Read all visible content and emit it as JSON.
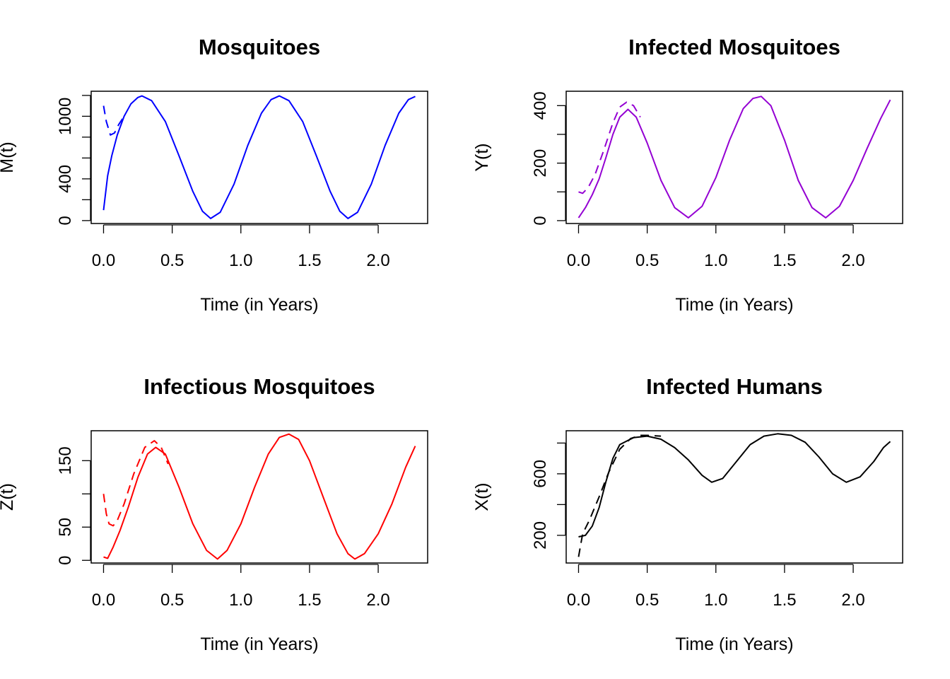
{
  "chart_data": [
    {
      "type": "line",
      "title": "Mosquitoes",
      "xlabel": "Time (in Years)",
      "ylabel": "M(t)",
      "xlim": [
        -0.09,
        2.36
      ],
      "ylim": [
        -28,
        1240
      ],
      "xticks": [
        0.0,
        0.5,
        1.0,
        1.5,
        2.0
      ],
      "xtick_labels": [
        "0.0",
        "0.5",
        "1.0",
        "1.5",
        "2.0"
      ],
      "yticks": [
        0,
        200,
        400,
        600,
        800,
        1000,
        1200
      ],
      "ytick_labels": [
        "0",
        "",
        "400",
        "",
        "",
        "1000",
        ""
      ],
      "color": "#0000ff",
      "series": [
        {
          "style": "solid",
          "points": [
            [
              0.0,
              100
            ],
            [
              0.03,
              430
            ],
            [
              0.06,
              620
            ],
            [
              0.1,
              820
            ],
            [
              0.15,
              1000
            ],
            [
              0.2,
              1120
            ],
            [
              0.25,
              1180
            ],
            [
              0.28,
              1195
            ],
            [
              0.35,
              1150
            ],
            [
              0.45,
              950
            ],
            [
              0.55,
              620
            ],
            [
              0.65,
              280
            ],
            [
              0.72,
              90
            ],
            [
              0.78,
              20
            ],
            [
              0.85,
              80
            ],
            [
              0.95,
              350
            ],
            [
              1.05,
              720
            ],
            [
              1.15,
              1030
            ],
            [
              1.22,
              1160
            ],
            [
              1.28,
              1195
            ],
            [
              1.35,
              1150
            ],
            [
              1.45,
              950
            ],
            [
              1.55,
              620
            ],
            [
              1.65,
              280
            ],
            [
              1.72,
              90
            ],
            [
              1.78,
              20
            ],
            [
              1.85,
              80
            ],
            [
              1.95,
              350
            ],
            [
              2.05,
              720
            ],
            [
              2.15,
              1030
            ],
            [
              2.22,
              1160
            ],
            [
              2.27,
              1190
            ]
          ]
        },
        {
          "style": "dashed",
          "points": [
            [
              0.0,
              1100
            ],
            [
              0.02,
              950
            ],
            [
              0.05,
              820
            ],
            [
              0.08,
              840
            ],
            [
              0.11,
              920
            ],
            [
              0.15,
              1000
            ]
          ]
        }
      ]
    },
    {
      "type": "line",
      "title": "Infected Mosquitoes",
      "xlabel": "Time (in Years)",
      "ylabel": "Y(t)",
      "xlim": [
        -0.09,
        2.36
      ],
      "ylim": [
        -10,
        450
      ],
      "xticks": [
        0.0,
        0.5,
        1.0,
        1.5,
        2.0
      ],
      "xtick_labels": [
        "0.0",
        "0.5",
        "1.0",
        "1.5",
        "2.0"
      ],
      "yticks": [
        0,
        100,
        200,
        300,
        400
      ],
      "ytick_labels": [
        "0",
        "",
        "200",
        "",
        "400"
      ],
      "color": "#9400d3",
      "series": [
        {
          "style": "solid",
          "points": [
            [
              0.0,
              10
            ],
            [
              0.05,
              45
            ],
            [
              0.1,
              90
            ],
            [
              0.15,
              145
            ],
            [
              0.2,
              220
            ],
            [
              0.25,
              300
            ],
            [
              0.3,
              360
            ],
            [
              0.36,
              387
            ],
            [
              0.42,
              360
            ],
            [
              0.5,
              270
            ],
            [
              0.6,
              140
            ],
            [
              0.7,
              45
            ],
            [
              0.8,
              10
            ],
            [
              0.9,
              50
            ],
            [
              1.0,
              150
            ],
            [
              1.1,
              280
            ],
            [
              1.2,
              390
            ],
            [
              1.27,
              425
            ],
            [
              1.33,
              432
            ],
            [
              1.4,
              400
            ],
            [
              1.5,
              280
            ],
            [
              1.6,
              140
            ],
            [
              1.7,
              45
            ],
            [
              1.8,
              10
            ],
            [
              1.9,
              50
            ],
            [
              2.0,
              140
            ],
            [
              2.1,
              250
            ],
            [
              2.2,
              355
            ],
            [
              2.27,
              420
            ]
          ]
        },
        {
          "style": "dashed",
          "points": [
            [
              0.0,
              100
            ],
            [
              0.03,
              95
            ],
            [
              0.07,
              115
            ],
            [
              0.12,
              160
            ],
            [
              0.18,
              240
            ],
            [
              0.25,
              340
            ],
            [
              0.3,
              395
            ],
            [
              0.35,
              412
            ],
            [
              0.4,
              400
            ],
            [
              0.45,
              360
            ]
          ]
        }
      ]
    },
    {
      "type": "line",
      "title": "Infectious Mosquitoes",
      "xlabel": "Time (in Years)",
      "ylabel": "Z(t)",
      "xlim": [
        -0.09,
        2.36
      ],
      "ylim": [
        -4,
        195
      ],
      "xticks": [
        0.0,
        0.5,
        1.0,
        1.5,
        2.0
      ],
      "xtick_labels": [
        "0.0",
        "0.5",
        "1.0",
        "1.5",
        "2.0"
      ],
      "yticks": [
        0,
        50,
        100,
        150
      ],
      "ytick_labels": [
        "0",
        "50",
        "",
        "150"
      ],
      "color": "#ff0000",
      "series": [
        {
          "style": "solid",
          "points": [
            [
              0.0,
              5
            ],
            [
              0.03,
              3
            ],
            [
              0.07,
              20
            ],
            [
              0.12,
              45
            ],
            [
              0.18,
              80
            ],
            [
              0.25,
              125
            ],
            [
              0.32,
              160
            ],
            [
              0.38,
              170
            ],
            [
              0.45,
              160
            ],
            [
              0.55,
              110
            ],
            [
              0.65,
              55
            ],
            [
              0.75,
              15
            ],
            [
              0.83,
              2
            ],
            [
              0.9,
              15
            ],
            [
              1.0,
              55
            ],
            [
              1.1,
              110
            ],
            [
              1.2,
              160
            ],
            [
              1.28,
              185
            ],
            [
              1.35,
              190
            ],
            [
              1.42,
              182
            ],
            [
              1.5,
              150
            ],
            [
              1.6,
              95
            ],
            [
              1.7,
              40
            ],
            [
              1.78,
              10
            ],
            [
              1.83,
              2
            ],
            [
              1.9,
              10
            ],
            [
              2.0,
              40
            ],
            [
              2.1,
              85
            ],
            [
              2.2,
              140
            ],
            [
              2.27,
              172
            ]
          ]
        },
        {
          "style": "dashed",
          "points": [
            [
              0.0,
              100
            ],
            [
              0.02,
              70
            ],
            [
              0.04,
              55
            ],
            [
              0.07,
              52
            ],
            [
              0.1,
              60
            ],
            [
              0.15,
              85
            ],
            [
              0.22,
              130
            ],
            [
              0.3,
              170
            ],
            [
              0.37,
              180
            ],
            [
              0.42,
              170
            ],
            [
              0.47,
              145
            ]
          ]
        }
      ]
    },
    {
      "type": "line",
      "title": "Infected Humans",
      "xlabel": "Time (in Years)",
      "ylabel": "X(t)",
      "xlim": [
        -0.09,
        2.36
      ],
      "ylim": [
        20,
        880
      ],
      "xticks": [
        0.0,
        0.5,
        1.0,
        1.5,
        2.0
      ],
      "xtick_labels": [
        "0.0",
        "0.5",
        "1.0",
        "1.5",
        "2.0"
      ],
      "yticks": [
        200,
        400,
        600,
        800
      ],
      "ytick_labels": [
        "200",
        "",
        "600",
        ""
      ],
      "color": "#000000",
      "series": [
        {
          "style": "solid",
          "points": [
            [
              0.0,
              190
            ],
            [
              0.05,
              200
            ],
            [
              0.1,
              260
            ],
            [
              0.15,
              380
            ],
            [
              0.2,
              550
            ],
            [
              0.25,
              700
            ],
            [
              0.3,
              790
            ],
            [
              0.4,
              835
            ],
            [
              0.5,
              845
            ],
            [
              0.6,
              825
            ],
            [
              0.7,
              770
            ],
            [
              0.8,
              690
            ],
            [
              0.9,
              590
            ],
            [
              0.97,
              545
            ],
            [
              1.05,
              570
            ],
            [
              1.15,
              680
            ],
            [
              1.25,
              790
            ],
            [
              1.35,
              845
            ],
            [
              1.45,
              860
            ],
            [
              1.55,
              850
            ],
            [
              1.65,
              805
            ],
            [
              1.75,
              710
            ],
            [
              1.85,
              600
            ],
            [
              1.95,
              545
            ],
            [
              2.05,
              580
            ],
            [
              2.15,
              680
            ],
            [
              2.22,
              770
            ],
            [
              2.27,
              810
            ]
          ]
        },
        {
          "style": "dashed",
          "points": [
            [
              0.0,
              60
            ],
            [
              0.03,
              210
            ],
            [
              0.08,
              300
            ],
            [
              0.15,
              450
            ],
            [
              0.22,
              610
            ],
            [
              0.3,
              760
            ],
            [
              0.38,
              830
            ],
            [
              0.45,
              850
            ],
            [
              0.5,
              850
            ],
            [
              0.6,
              845
            ]
          ]
        }
      ]
    }
  ]
}
